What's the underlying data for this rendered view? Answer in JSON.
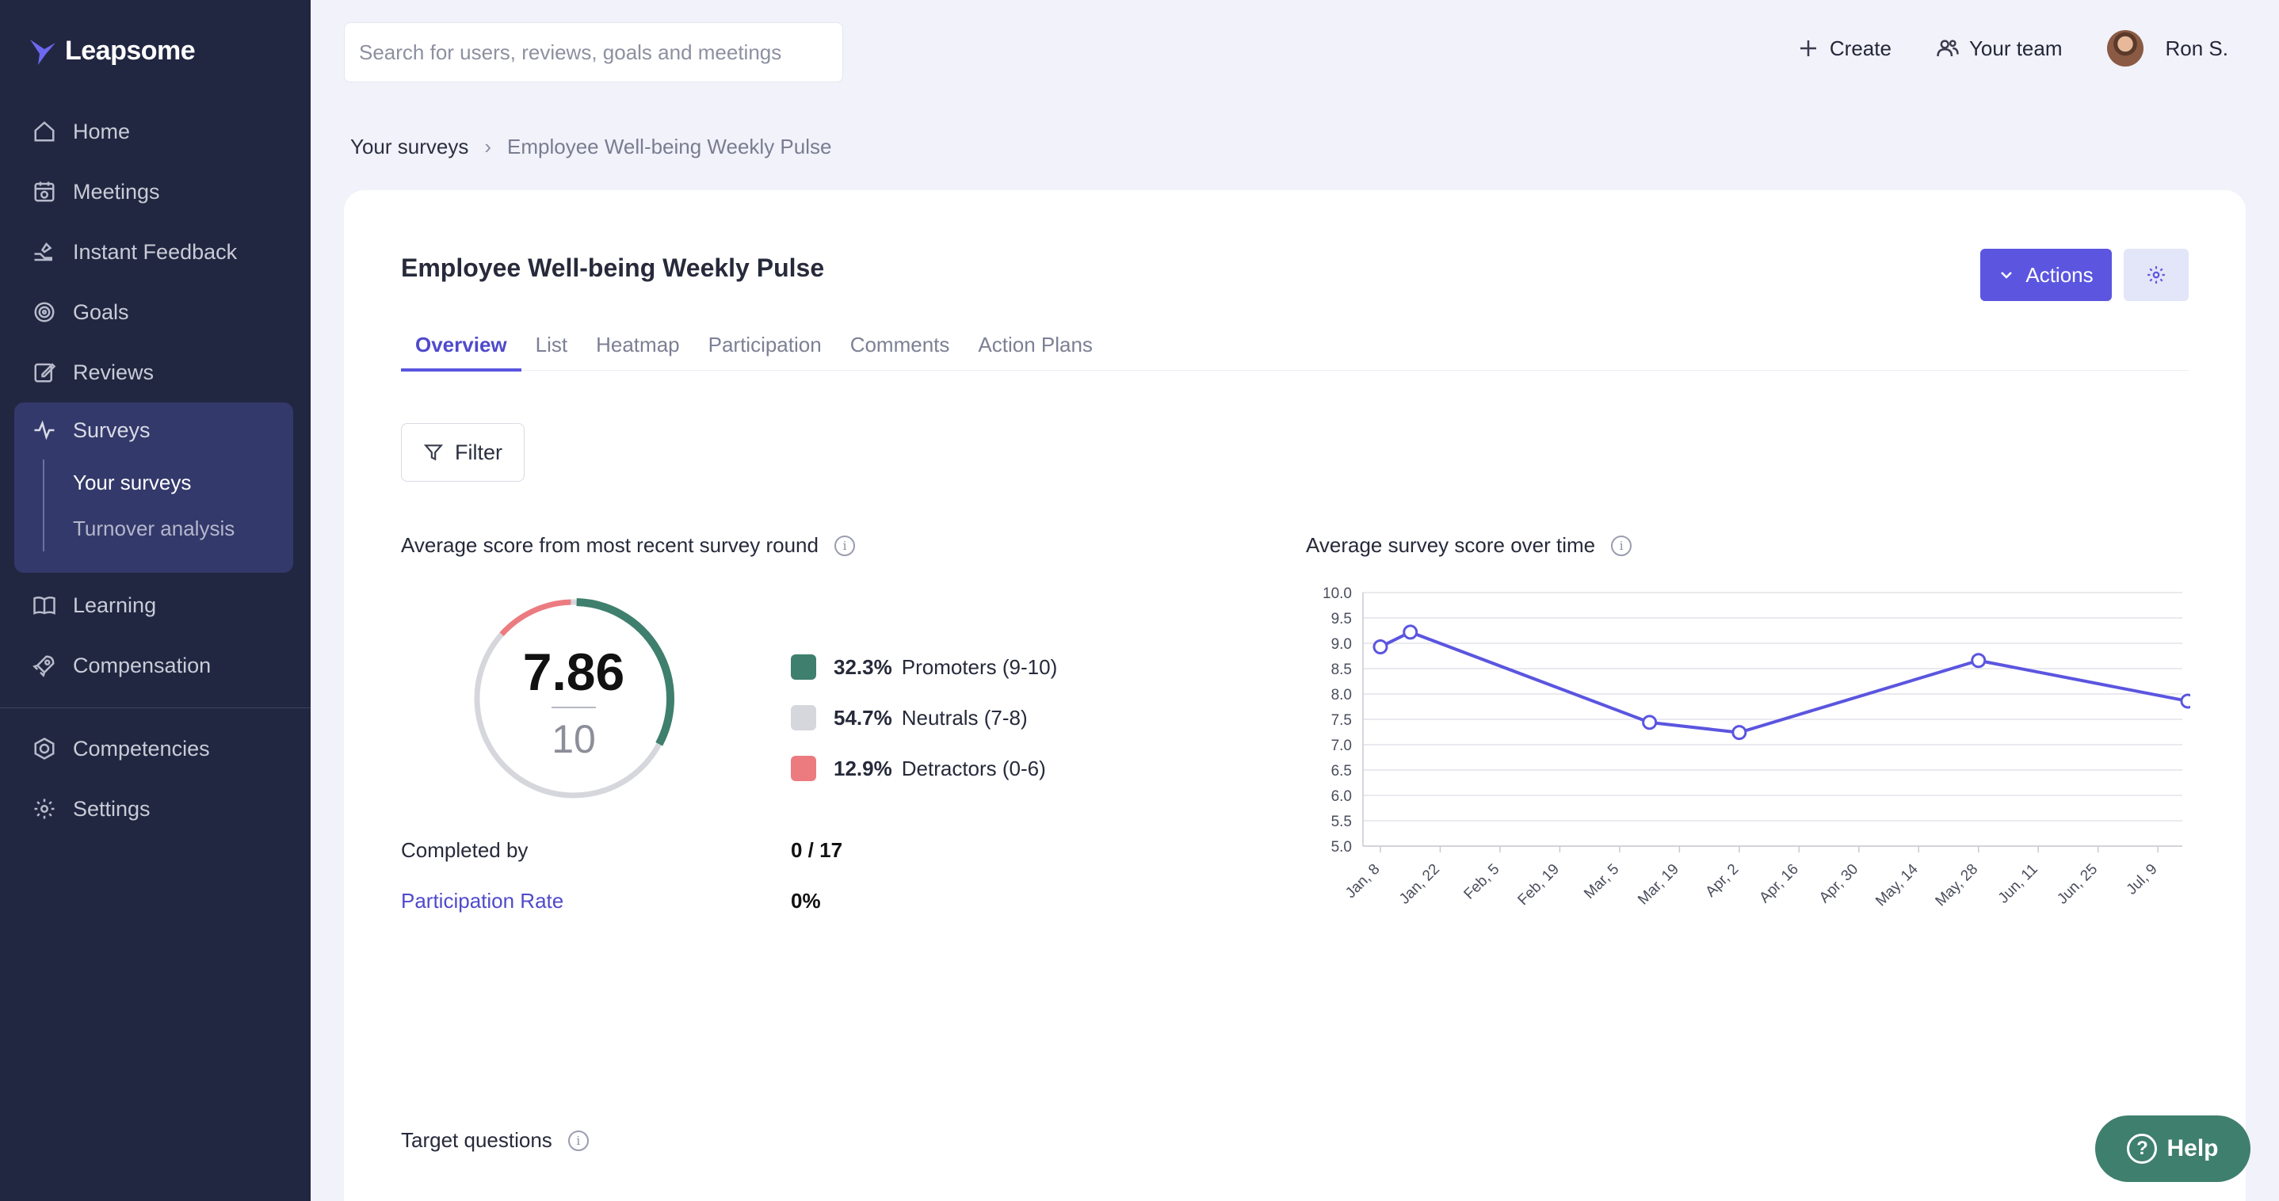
{
  "app": {
    "logo_text": "Leapsome",
    "accent_color": "#5b55e0",
    "sidebar_color": "#212741"
  },
  "sidebar": {
    "items": [
      {
        "label": "Home",
        "icon": "home-icon"
      },
      {
        "label": "Meetings",
        "icon": "meetings-icon"
      },
      {
        "label": "Instant Feedback",
        "icon": "feedback-icon"
      },
      {
        "label": "Goals",
        "icon": "target-icon"
      },
      {
        "label": "Reviews",
        "icon": "edit-icon"
      },
      {
        "label": "Surveys",
        "icon": "pulse-icon",
        "active": true
      },
      {
        "label": "Learning",
        "icon": "book-icon"
      },
      {
        "label": "Compensation",
        "icon": "rocket-icon"
      },
      {
        "label": "Competencies",
        "icon": "competencies-icon"
      },
      {
        "label": "Settings",
        "icon": "gear-icon"
      }
    ],
    "surveys_sub": [
      {
        "label": "Your surveys",
        "active": true
      },
      {
        "label": "Turnover analysis"
      }
    ]
  },
  "header": {
    "search_placeholder": "Search for users, reviews, goals and meetings",
    "create_label": "Create",
    "team_label": "Your team",
    "user_name": "Ron S."
  },
  "breadcrumb": {
    "parent": "Your surveys",
    "current": "Employee Well-being Weekly Pulse"
  },
  "survey": {
    "title": "Employee Well-being Weekly Pulse",
    "actions_label": "Actions",
    "tabs": [
      "Overview",
      "List",
      "Heatmap",
      "Participation",
      "Comments",
      "Action Plans"
    ],
    "active_tab": "Overview",
    "filter_label": "Filter",
    "score_section_title": "Average score from most recent survey round",
    "score": "7.86",
    "score_max": "10",
    "distribution": [
      {
        "pct": "32.3%",
        "label": "Promoters (9-10)",
        "color": "#3f7f6d",
        "value": 0.323
      },
      {
        "pct": "54.7%",
        "label": "Neutrals (7-8)",
        "color": "#d6d7dc",
        "value": 0.547
      },
      {
        "pct": "12.9%",
        "label": "Detractors (0-6)",
        "color": "#ec7b80",
        "value": 0.129
      }
    ],
    "completed_label": "Completed by",
    "completed_value": "0 / 17",
    "participation_label": "Participation Rate",
    "participation_value": "0%",
    "trend_section_title": "Average survey score over time",
    "target_questions_title": "Target questions",
    "help_label": "Help"
  },
  "chart_data": {
    "type": "line",
    "title": "Average survey score over time",
    "categories": [
      "Jan, 8",
      "Jan, 22",
      "Feb, 5",
      "Feb, 19",
      "Mar, 5",
      "Mar, 19",
      "Apr, 2",
      "Apr, 16",
      "Apr, 30",
      "May, 14",
      "May, 28",
      "Jun, 11",
      "Jun, 25",
      "Jul, 9"
    ],
    "series": [
      {
        "color": "#5b55e0",
        "points": [
          {
            "x": "Jan, 8",
            "y": 8.93
          },
          {
            "x": "Jan 15",
            "y": 9.22
          },
          {
            "x": "Mar 12",
            "y": 7.44
          },
          {
            "x": "Apr 2",
            "y": 7.24
          },
          {
            "x": "May 28",
            "y": 8.66
          },
          {
            "x": "Jul 16",
            "y": 7.86
          }
        ]
      }
    ],
    "y_ticks": [
      "10.0",
      "9.5",
      "9.0",
      "8.5",
      "8.0",
      "7.5",
      "7.0",
      "6.5",
      "6.0",
      "5.5",
      "5.0"
    ],
    "ylim": [
      5.0,
      10.0
    ],
    "grid": true
  }
}
